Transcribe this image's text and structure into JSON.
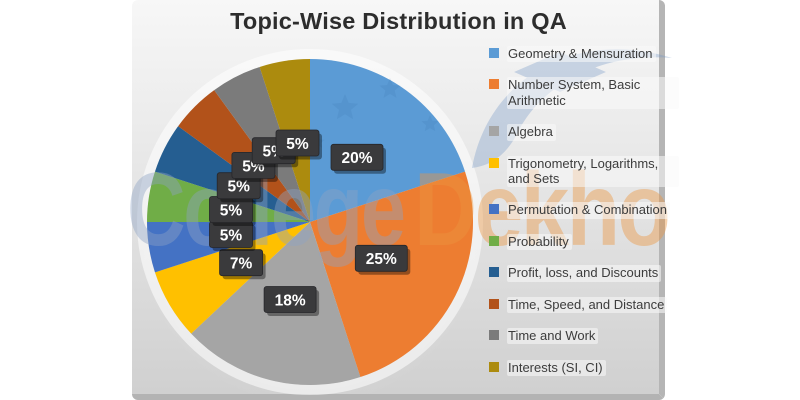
{
  "watermark": {
    "part1": "College",
    "part2": "Dekho",
    "part1_color": "#8EA3C4",
    "part2_color": "#EC9640",
    "logo_icons": [
      "star-icon",
      "graduation-cap-icon"
    ],
    "logo_color": "#6E93C4"
  },
  "chart_data": {
    "type": "pie",
    "title": "Topic-Wise Distribution in QA",
    "categories": [
      "Geometry & Mensuration",
      "Number System, Basic Arithmetic",
      "Algebra",
      "Trigonometry, Logarithms, and Sets",
      "Permutation & Combination",
      "Probability",
      "Profit, loss, and Discounts",
      "Time, Speed, and Distance",
      "Time and Work",
      "Interests (SI, CI)"
    ],
    "values": [
      20,
      25,
      18,
      7,
      5,
      5,
      5,
      5,
      5,
      5
    ],
    "labels": [
      "20%",
      "25%",
      "18%",
      "7%",
      "5%",
      "5%",
      "5%",
      "5%",
      "5%",
      "5%"
    ],
    "colors": [
      "#5B9BD5",
      "#ED7D31",
      "#A5A5A5",
      "#FFC000",
      "#4472C4",
      "#70AD47",
      "#255E91",
      "#B2521A",
      "#7B7B7B",
      "#AC8B0E"
    ],
    "legend_position": "right",
    "start_angle_deg": 0,
    "direction": "clockwise",
    "label_box_color": "#3A3A3C",
    "label_text_color": "#FFFFFF"
  }
}
